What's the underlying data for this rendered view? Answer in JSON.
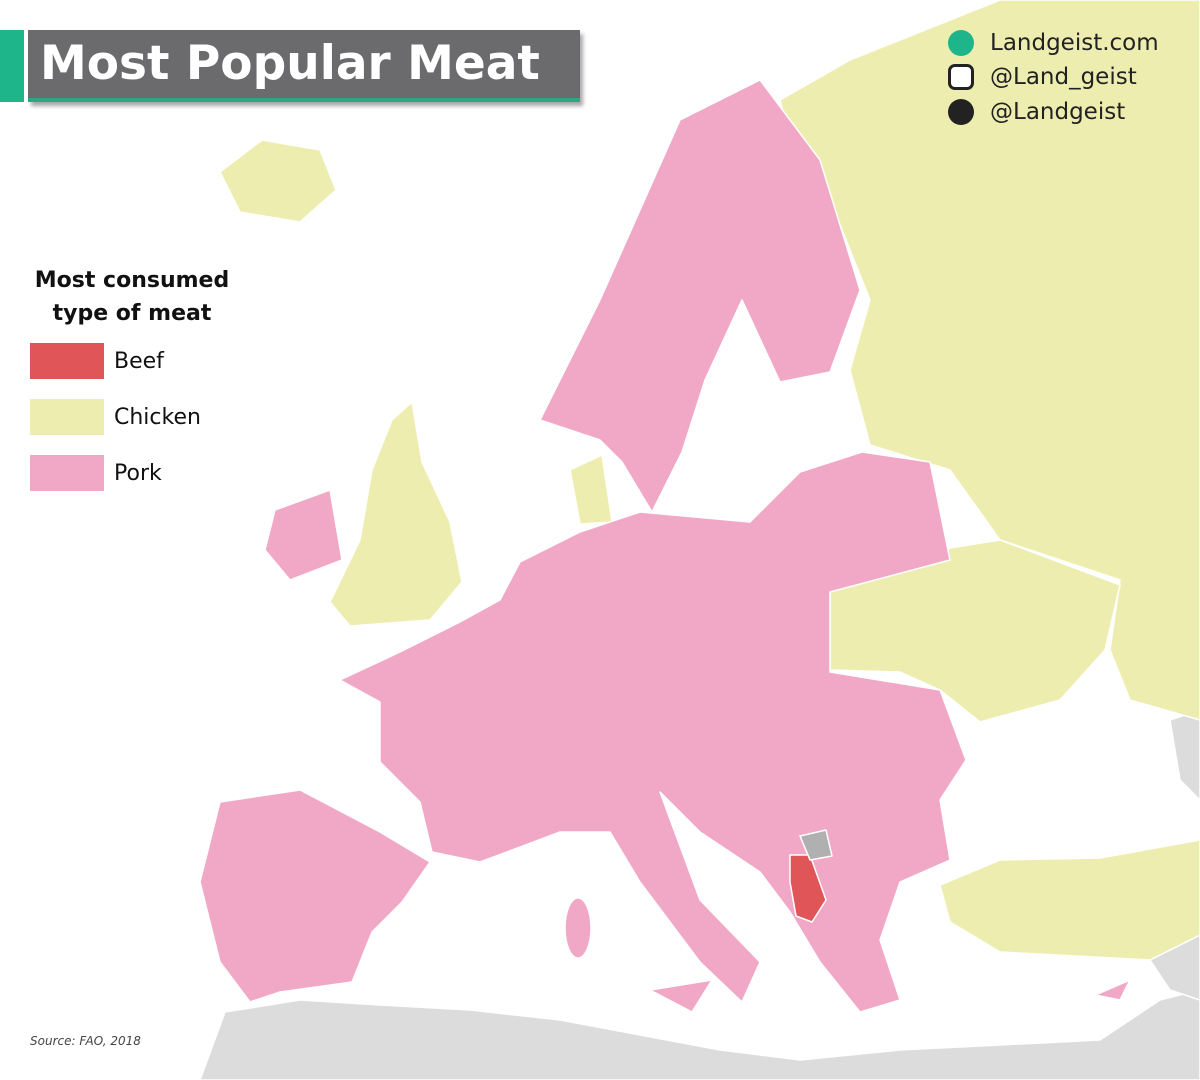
{
  "header": {
    "title": "Most Popular Meat"
  },
  "credits": [
    "Landgeist.com",
    "@Land_geist",
    "@Landgeist"
  ],
  "legend": {
    "title": "Most consumed type of meat",
    "items": [
      {
        "label": "Beef",
        "color": "#e05558"
      },
      {
        "label": "Chicken",
        "color": "#eeedb0"
      },
      {
        "label": "Pork",
        "color": "#f1a7c6"
      }
    ]
  },
  "source": "Source: FAO, 2018"
}
